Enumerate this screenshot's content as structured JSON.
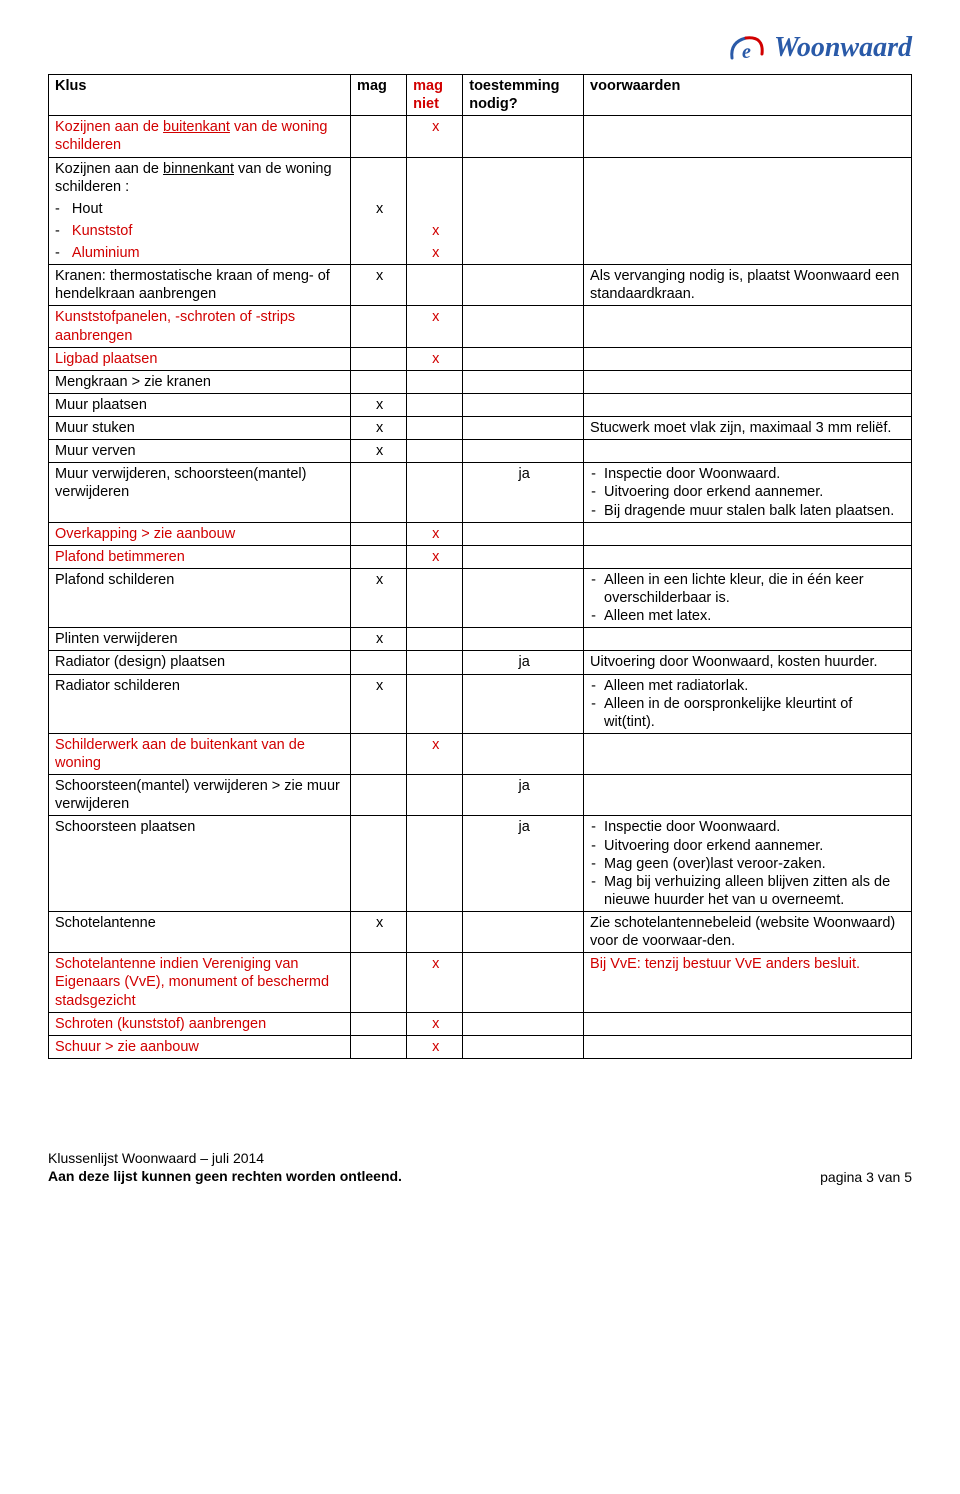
{
  "logo": {
    "text": "Woonwaard",
    "color": "#2a5aa8"
  },
  "table": {
    "headers": {
      "klus": "Klus",
      "mag": "mag",
      "mag_niet": "mag niet",
      "toestemming": "toestemming nodig?",
      "voorwaarden": "voorwaarden"
    },
    "rows": [
      {
        "cells": [
          "Kozijnen aan de <span class='u'>buitenkant</span> van de woning schilderen",
          "",
          "x",
          "",
          ""
        ],
        "klus_red": true
      },
      {
        "cells": [
          "Kozijnen aan de <span class='u'>binnenkant</span> van de woning schilderen :",
          "",
          "",
          "",
          ""
        ],
        "open_bottom": true
      },
      {
        "cells": [
          "-&nbsp;&nbsp;&nbsp;Hout",
          "x",
          "",
          "",
          ""
        ],
        "continuation": true
      },
      {
        "cells": [
          "-&nbsp;&nbsp;&nbsp;<span class='red'>Kunststof</span>",
          "",
          "x",
          "",
          ""
        ],
        "continuation": true
      },
      {
        "cells": [
          "-&nbsp;&nbsp;&nbsp;<span class='red'>Aluminium</span>",
          "",
          "x",
          "",
          ""
        ],
        "continuation": true
      },
      {
        "cells": [
          "Kranen: thermostatische kraan of meng- of hendelkraan aanbrengen",
          "x",
          "",
          "",
          "Als vervanging nodig is, plaatst Woonwaard een standaardkraan."
        ]
      },
      {
        "cells": [
          "Kunststofpanelen, -schroten of -strips aanbrengen",
          "",
          "x",
          "",
          ""
        ],
        "klus_red": true
      },
      {
        "cells": [
          "Ligbad plaatsen",
          "",
          "x",
          "",
          ""
        ],
        "klus_red": true
      },
      {
        "cells": [
          "Mengkraan > zie kranen",
          "",
          "",
          "",
          ""
        ]
      },
      {
        "cells": [
          "Muur plaatsen",
          "x",
          "",
          "",
          ""
        ]
      },
      {
        "cells": [
          "Muur stuken",
          "x",
          "",
          "",
          "Stucwerk moet vlak zijn, maximaal 3 mm reliëf."
        ]
      },
      {
        "cells": [
          "Muur verven",
          "x",
          "",
          "",
          ""
        ]
      },
      {
        "cells": [
          "Muur verwijderen, schoorsteen(mantel) verwijderen",
          "",
          "",
          "ja",
          "<ul class='bullets'><li>Inspectie door Woonwaard.</li><li>Uitvoering door erkend aannemer.</li><li>Bij dragende muur stalen balk laten plaatsen.</li></ul>"
        ]
      },
      {
        "cells": [
          "Overkapping > zie aanbouw",
          "",
          "x",
          "",
          ""
        ],
        "klus_red": true
      },
      {
        "cells": [
          "Plafond betimmeren",
          "",
          "x",
          "",
          ""
        ],
        "klus_red": true
      },
      {
        "cells": [
          "Plafond schilderen",
          "x",
          "",
          "",
          "<ul class='bullets'><li>Alleen in een lichte kleur, die in één keer overschilderbaar is.</li><li>Alleen met latex.</li></ul>"
        ]
      },
      {
        "cells": [
          "Plinten verwijderen",
          "x",
          "",
          "",
          ""
        ]
      },
      {
        "cells": [
          "Radiator (design) plaatsen",
          "",
          "",
          "ja",
          "Uitvoering door Woonwaard, kosten huurder."
        ]
      },
      {
        "cells": [
          "Radiator schilderen",
          "x",
          "",
          "",
          "<ul class='bullets'><li>Alleen met radiatorlak.</li><li>Alleen in de oorspronkelijke kleurtint of wit(tint).</li></ul>"
        ]
      },
      {
        "cells": [
          "Schilderwerk aan de buitenkant van de woning",
          "",
          "x",
          "",
          ""
        ],
        "klus_red": true
      },
      {
        "cells": [
          "Schoorsteen(mantel) verwijderen > zie muur verwijderen",
          "",
          "",
          "ja",
          ""
        ]
      },
      {
        "cells": [
          "Schoorsteen plaatsen",
          "",
          "",
          "ja",
          "<ul class='bullets'><li>Inspectie door Woonwaard.</li><li>Uitvoering door erkend aannemer.</li><li>Mag geen (over)last veroor-zaken.</li><li>Mag bij verhuizing alleen blijven zitten als de nieuwe huurder het van u overneemt.</li></ul>"
        ]
      },
      {
        "cells": [
          "Schotelantenne",
          "x",
          "",
          "",
          "Zie schotelantennebeleid (website Woonwaard) voor de voorwaar-den."
        ]
      },
      {
        "cells": [
          "Schotelantenne indien Vereniging van Eigenaars (VvE), monument of beschermd stadsgezicht",
          "",
          "x",
          "",
          "Bij VvE: tenzij bestuur VvE anders besluit."
        ],
        "klus_red": true,
        "vw_red": true
      },
      {
        "cells": [
          "Schroten (kunststof) aanbrengen",
          "",
          "x",
          "",
          ""
        ],
        "klus_red": true
      },
      {
        "cells": [
          "Schuur > zie aanbouw",
          "",
          "x",
          "",
          ""
        ],
        "klus_red": true
      }
    ]
  },
  "footer": {
    "line1": "Klussenlijst Woonwaard – juli 2014",
    "line2": "Aan deze lijst kunnen geen rechten worden ontleend.",
    "page": "pagina 3 van 5"
  }
}
